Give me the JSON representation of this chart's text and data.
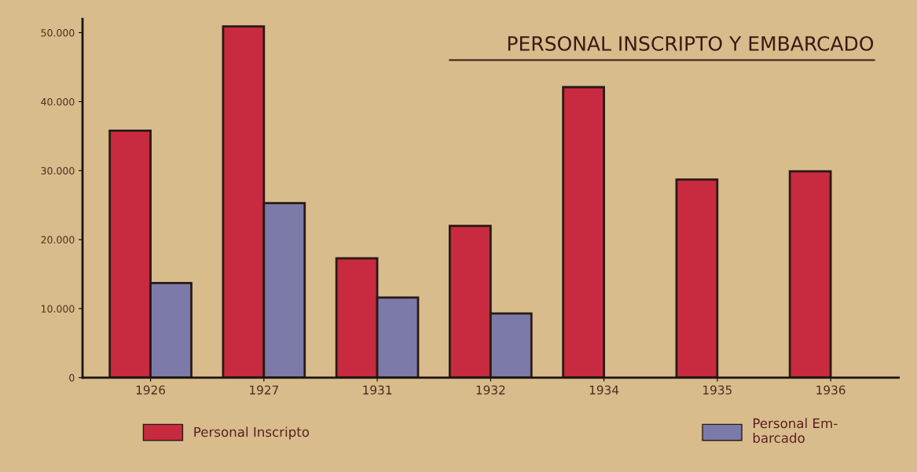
{
  "chart_data": {
    "type": "bar",
    "title": "PERSONAL INSCRIPTO Y EMBARCADO",
    "categories": [
      "1926",
      "1927",
      "1931",
      "1932",
      "1934",
      "1935",
      "1936"
    ],
    "series": [
      {
        "name": "Personal Inscripto",
        "color": "#c82a40",
        "values": [
          35800,
          50900,
          17300,
          22000,
          42100,
          28700,
          29900
        ]
      },
      {
        "name": "Personal Em-\nbarcado",
        "color": "#7c7aa8",
        "values": [
          13700,
          25300,
          11600,
          9300,
          null,
          null,
          null
        ]
      }
    ],
    "ylim": [
      0,
      52000
    ],
    "yticks": [
      0,
      {
        "value": 10000,
        "label": "10.000"
      },
      {
        "value": 20000,
        "label": "20.000"
      },
      {
        "value": 30000,
        "label": "30.000"
      },
      {
        "value": 40000,
        "label": "40.000"
      },
      {
        "value": 50000,
        "label": "50.000"
      }
    ],
    "grid": false,
    "legend": "bottom"
  }
}
